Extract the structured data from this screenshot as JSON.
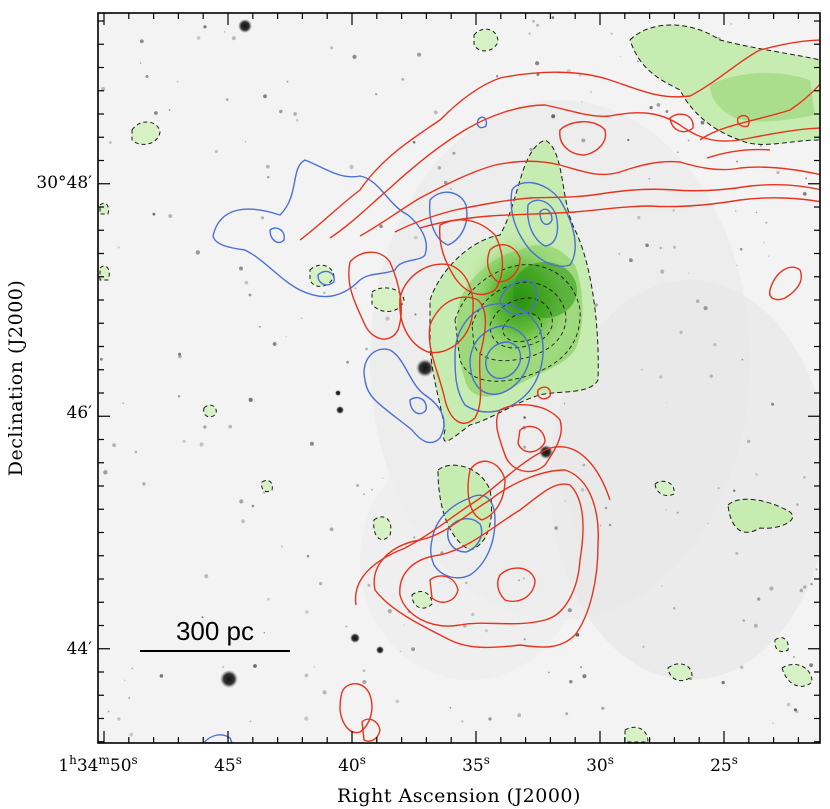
{
  "figure": {
    "x_axis_title": "Right Ascension (J2000)",
    "y_axis_title": "Declination (J2000)",
    "ra_ticks": [
      {
        "main": "1",
        "sup_h": "h",
        "mid": "34",
        "sup_m": "m",
        "val": "50",
        "sup_s": "s"
      },
      {
        "main": "45",
        "sup_s": "s"
      },
      {
        "main": "40",
        "sup_s": "s"
      },
      {
        "main": "35",
        "sup_s": "s"
      },
      {
        "main": "30",
        "sup_s": "s"
      },
      {
        "main": "25",
        "sup_s": "s"
      }
    ],
    "dec_ticks": [
      "30°48′",
      "46′",
      "44′"
    ],
    "scale_bar_label": "300 pc",
    "colors": {
      "red_contours": "#e8321e",
      "blue_contours": "#4a6fd6",
      "green_contours": "#1a1a1a",
      "green_fill": "#bfe8a6",
      "green_core": "#2f9a12",
      "background": "#f4f4f4"
    }
  }
}
